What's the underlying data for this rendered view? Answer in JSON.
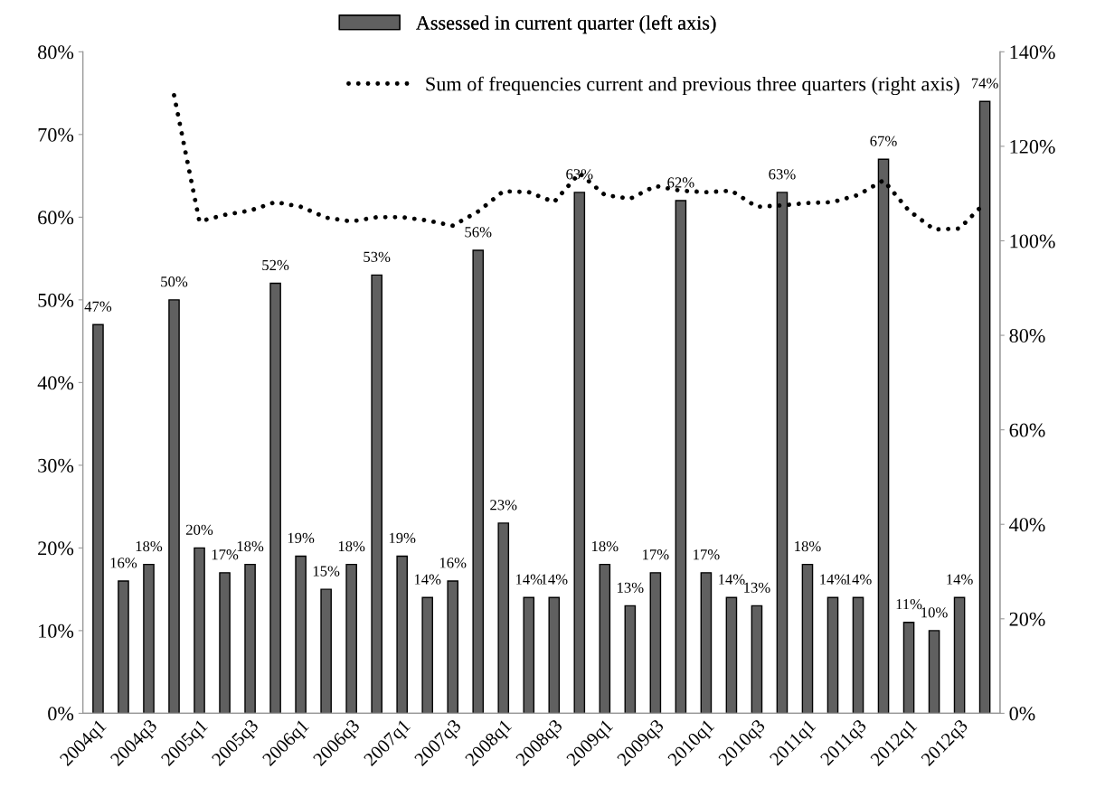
{
  "chart_data": {
    "type": "bar",
    "categories": [
      "2004q1",
      null,
      "2004q3",
      null,
      "2005q1",
      null,
      "2005q3",
      null,
      "2006q1",
      null,
      "2006q3",
      null,
      "2007q1",
      null,
      "2007q3",
      null,
      "2008q1",
      null,
      "2008q3",
      null,
      "2009q1",
      null,
      "2009q3",
      null,
      "2010q1",
      null,
      "2010q3",
      null,
      "2011q1",
      null,
      "2011q3",
      null,
      "2012q1",
      null,
      "2012q3",
      null
    ],
    "series": [
      {
        "name": "Assessed in current quarter (left axis)",
        "color": "#606060",
        "values": [
          47,
          16,
          18,
          50,
          20,
          17,
          18,
          52,
          19,
          15,
          18,
          53,
          19,
          14,
          16,
          56,
          23,
          14,
          14,
          63,
          18,
          13,
          17,
          62,
          17,
          14,
          13,
          63,
          18,
          14,
          14,
          67,
          11,
          10,
          14,
          74
        ],
        "value_labels": [
          "47%",
          "16%",
          "18%",
          "50%",
          "20%",
          "17%",
          "18%",
          "52%",
          "19%",
          "15%",
          "18%",
          "53%",
          "19%",
          "14%",
          "16%",
          "56%",
          "23%",
          "14%",
          "14%",
          "63%",
          "18%",
          "13%",
          "17%",
          "62%",
          "17%",
          "14%",
          "13%",
          "63%",
          "18%",
          "14%",
          "14%",
          "67%",
          "11%",
          "10%",
          "14%",
          "74%"
        ]
      },
      {
        "name": "Sum of frequencies current and previous three quarters (right axis)",
        "type": "line",
        "axis": "y2",
        "color": "#000000",
        "line_style": "dotted",
        "values": [
          null,
          null,
          null,
          130.8,
          104.1,
          105.5,
          106.4,
          108.2,
          107.2,
          104.9,
          104.1,
          105,
          105,
          104.3,
          103.2,
          106.2,
          110.5,
          110.3,
          108.2,
          114.3,
          109.7,
          108.9,
          111.6,
          110.6,
          110.3,
          110.6,
          107.2,
          107.5,
          108,
          108.2,
          109.7,
          112.8,
          106.4,
          102.4,
          102.6,
          108
        ]
      }
    ],
    "ylim": [
      0,
      80
    ],
    "yticks": [
      {
        "value": 0,
        "label": "0%"
      },
      {
        "value": 10,
        "label": "10%"
      },
      {
        "value": 20,
        "label": "20%"
      },
      {
        "value": 30,
        "label": "30%"
      },
      {
        "value": 40,
        "label": "40%"
      },
      {
        "value": 50,
        "label": "50%"
      },
      {
        "value": 60,
        "label": "60%"
      },
      {
        "value": 70,
        "label": "70%"
      },
      {
        "value": 80,
        "label": "80%"
      }
    ],
    "y2lim": [
      0,
      140
    ],
    "y2ticks": [
      {
        "value": 0,
        "label": "0%"
      },
      {
        "value": 20,
        "label": "20%"
      },
      {
        "value": 40,
        "label": "40%"
      },
      {
        "value": 60,
        "label": "60%"
      },
      {
        "value": 80,
        "label": "80%"
      },
      {
        "value": 100,
        "label": "100%"
      },
      {
        "value": 120,
        "label": "120%"
      },
      {
        "value": 140,
        "label": "140%"
      }
    ],
    "legend": "top",
    "grid": false
  }
}
